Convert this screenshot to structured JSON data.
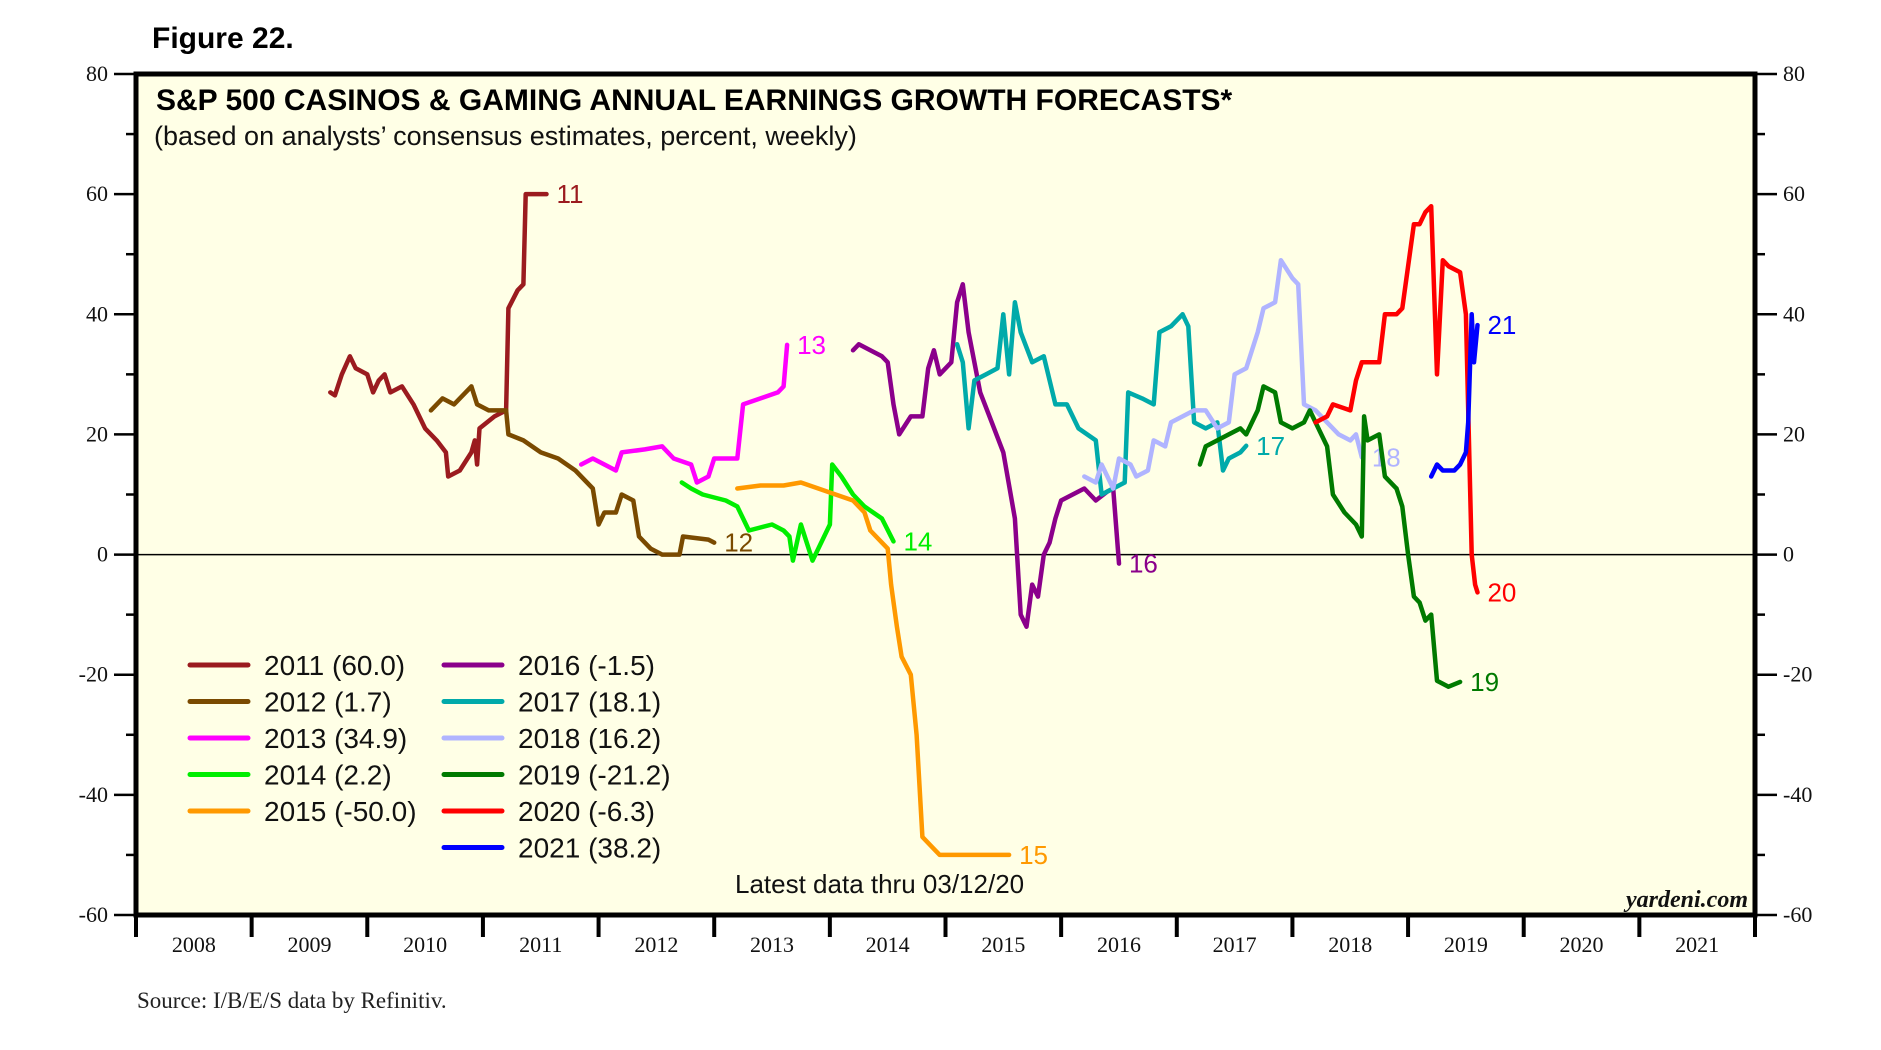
{
  "figure_label": "Figure 22.",
  "source": "Source: I/B/E/S data by Refinitiv.",
  "chart_data": {
    "type": "line",
    "title": "S&P 500 CASINOS & GAMING ANNUAL EARNINGS GROWTH FORECASTS*",
    "subtitle": "(based on analysts’ consensus estimates, percent, weekly)",
    "xlabel": "",
    "ylabel": "",
    "xlim": [
      2008,
      2022
    ],
    "ylim": [
      -60,
      80
    ],
    "y_ticks": [
      80,
      60,
      40,
      20,
      0,
      -20,
      -40,
      -60
    ],
    "y_ticks_right": [
      80,
      60,
      40,
      20,
      0,
      -20,
      -40,
      -60
    ],
    "x_tick_labels": [
      "2008",
      "2009",
      "2010",
      "2011",
      "2012",
      "2013",
      "2014",
      "2015",
      "2016",
      "2017",
      "2018",
      "2019",
      "2020",
      "2021"
    ],
    "grid": false,
    "zero_line": true,
    "legend_placement": "bottom-left",
    "annotation_latest": "Latest data thru 03/12/20",
    "brand": "yardeni.com",
    "series": [
      {
        "name": "2011 (60.0)",
        "end_label": "11",
        "color": "#9b1b1f",
        "points": [
          [
            2009.68,
            27
          ],
          [
            2009.72,
            26.5
          ],
          [
            2009.78,
            30
          ],
          [
            2009.85,
            33
          ],
          [
            2009.9,
            31
          ],
          [
            2010.0,
            30
          ],
          [
            2010.05,
            27
          ],
          [
            2010.1,
            29
          ],
          [
            2010.15,
            30
          ],
          [
            2010.2,
            27
          ],
          [
            2010.3,
            28
          ],
          [
            2010.4,
            25
          ],
          [
            2010.5,
            21
          ],
          [
            2010.6,
            19
          ],
          [
            2010.68,
            17
          ],
          [
            2010.7,
            13
          ],
          [
            2010.8,
            14
          ],
          [
            2010.9,
            17
          ],
          [
            2010.93,
            19
          ],
          [
            2010.95,
            15
          ],
          [
            2010.97,
            21
          ],
          [
            2011.1,
            23
          ],
          [
            2011.2,
            24
          ],
          [
            2011.22,
            41
          ],
          [
            2011.3,
            44
          ],
          [
            2011.35,
            45
          ],
          [
            2011.37,
            60
          ],
          [
            2011.55,
            60
          ]
        ]
      },
      {
        "name": "2012 (1.7)",
        "end_label": "12",
        "color": "#7a4a00",
        "points": [
          [
            2010.55,
            24
          ],
          [
            2010.6,
            25
          ],
          [
            2010.65,
            26
          ],
          [
            2010.75,
            25
          ],
          [
            2010.85,
            27
          ],
          [
            2010.9,
            28
          ],
          [
            2010.95,
            25
          ],
          [
            2011.05,
            24
          ],
          [
            2011.2,
            24
          ],
          [
            2011.22,
            20
          ],
          [
            2011.35,
            19
          ],
          [
            2011.5,
            17
          ],
          [
            2011.65,
            16
          ],
          [
            2011.8,
            14
          ],
          [
            2011.95,
            11
          ],
          [
            2012.0,
            5
          ],
          [
            2012.05,
            7
          ],
          [
            2012.15,
            7
          ],
          [
            2012.2,
            10
          ],
          [
            2012.3,
            9
          ],
          [
            2012.35,
            3
          ],
          [
            2012.45,
            1
          ],
          [
            2012.55,
            0
          ],
          [
            2012.7,
            0
          ],
          [
            2012.73,
            3
          ],
          [
            2012.95,
            2.5
          ],
          [
            2013.0,
            2
          ]
        ]
      },
      {
        "name": "2013 (34.9)",
        "end_label": "13",
        "color": "#ff00ff",
        "points": [
          [
            2011.85,
            15
          ],
          [
            2011.95,
            16
          ],
          [
            2012.05,
            15
          ],
          [
            2012.15,
            14
          ],
          [
            2012.2,
            17
          ],
          [
            2012.4,
            17.5
          ],
          [
            2012.55,
            18
          ],
          [
            2012.65,
            16
          ],
          [
            2012.8,
            15
          ],
          [
            2012.85,
            12
          ],
          [
            2012.95,
            13
          ],
          [
            2013.0,
            16
          ],
          [
            2013.2,
            16
          ],
          [
            2013.25,
            25
          ],
          [
            2013.4,
            26
          ],
          [
            2013.55,
            27
          ],
          [
            2013.6,
            28
          ],
          [
            2013.63,
            34.9
          ]
        ]
      },
      {
        "name": "2014 (2.2)",
        "end_label": "14",
        "color": "#00ee00",
        "points": [
          [
            2012.72,
            12
          ],
          [
            2012.8,
            11
          ],
          [
            2012.9,
            10
          ],
          [
            2013.1,
            9
          ],
          [
            2013.2,
            8
          ],
          [
            2013.3,
            4
          ],
          [
            2013.5,
            5
          ],
          [
            2013.6,
            4
          ],
          [
            2013.65,
            3
          ],
          [
            2013.68,
            -1
          ],
          [
            2013.75,
            5
          ],
          [
            2013.85,
            -1
          ],
          [
            2013.9,
            1
          ],
          [
            2014.0,
            5
          ],
          [
            2014.02,
            15
          ],
          [
            2014.1,
            13
          ],
          [
            2014.2,
            10
          ],
          [
            2014.3,
            8
          ],
          [
            2014.45,
            6
          ],
          [
            2014.55,
            2.2
          ]
        ]
      },
      {
        "name": "2015 (-50.0)",
        "end_label": "15",
        "color": "#ff9900",
        "points": [
          [
            2013.2,
            11
          ],
          [
            2013.4,
            11.5
          ],
          [
            2013.6,
            11.5
          ],
          [
            2013.75,
            12
          ],
          [
            2013.9,
            11
          ],
          [
            2014.05,
            10
          ],
          [
            2014.2,
            9
          ],
          [
            2014.3,
            7
          ],
          [
            2014.35,
            4
          ],
          [
            2014.45,
            2
          ],
          [
            2014.5,
            1
          ],
          [
            2014.53,
            -5
          ],
          [
            2014.58,
            -12
          ],
          [
            2014.62,
            -17
          ],
          [
            2014.7,
            -20
          ],
          [
            2014.75,
            -30
          ],
          [
            2014.8,
            -47
          ],
          [
            2014.9,
            -49
          ],
          [
            2014.95,
            -50
          ],
          [
            2015.55,
            -50
          ]
        ]
      },
      {
        "name": "2016 (-1.5)",
        "end_label": "16",
        "color": "#8b008b",
        "points": [
          [
            2014.2,
            34
          ],
          [
            2014.25,
            35
          ],
          [
            2014.35,
            34
          ],
          [
            2014.45,
            33
          ],
          [
            2014.5,
            32
          ],
          [
            2014.55,
            25
          ],
          [
            2014.6,
            20
          ],
          [
            2014.7,
            23
          ],
          [
            2014.8,
            23
          ],
          [
            2014.85,
            31
          ],
          [
            2014.9,
            34
          ],
          [
            2014.95,
            30
          ],
          [
            2015.05,
            32
          ],
          [
            2015.1,
            42
          ],
          [
            2015.15,
            45
          ],
          [
            2015.2,
            37
          ],
          [
            2015.3,
            27
          ],
          [
            2015.4,
            22
          ],
          [
            2015.5,
            17
          ],
          [
            2015.6,
            6
          ],
          [
            2015.65,
            -10
          ],
          [
            2015.7,
            -12
          ],
          [
            2015.75,
            -5
          ],
          [
            2015.8,
            -7
          ],
          [
            2015.85,
            0
          ],
          [
            2015.9,
            2
          ],
          [
            2015.95,
            6
          ],
          [
            2016.0,
            9
          ],
          [
            2016.1,
            10
          ],
          [
            2016.2,
            11
          ],
          [
            2016.3,
            9
          ],
          [
            2016.4,
            10.5
          ],
          [
            2016.45,
            11
          ],
          [
            2016.5,
            -1.5
          ]
        ]
      },
      {
        "name": "2017 (18.1)",
        "end_label": "17",
        "color": "#00aaaa",
        "points": [
          [
            2015.1,
            35
          ],
          [
            2015.15,
            32
          ],
          [
            2015.2,
            21
          ],
          [
            2015.25,
            29
          ],
          [
            2015.35,
            30
          ],
          [
            2015.45,
            31
          ],
          [
            2015.5,
            40
          ],
          [
            2015.55,
            30
          ],
          [
            2015.6,
            42
          ],
          [
            2015.65,
            37
          ],
          [
            2015.75,
            32
          ],
          [
            2015.85,
            33
          ],
          [
            2015.95,
            25
          ],
          [
            2016.05,
            25
          ],
          [
            2016.15,
            21
          ],
          [
            2016.3,
            19
          ],
          [
            2016.35,
            10
          ],
          [
            2016.45,
            11
          ],
          [
            2016.55,
            12
          ],
          [
            2016.58,
            27
          ],
          [
            2016.7,
            26
          ],
          [
            2016.8,
            25
          ],
          [
            2016.85,
            37
          ],
          [
            2016.95,
            38
          ],
          [
            2017.05,
            40
          ],
          [
            2017.1,
            38
          ],
          [
            2017.15,
            22
          ],
          [
            2017.25,
            21
          ],
          [
            2017.35,
            22
          ],
          [
            2017.4,
            14
          ],
          [
            2017.45,
            16
          ],
          [
            2017.55,
            17
          ],
          [
            2017.6,
            18.1
          ]
        ]
      },
      {
        "name": "2018 (16.2)",
        "end_label": "18",
        "color": "#b0b4ff",
        "points": [
          [
            2016.2,
            13
          ],
          [
            2016.3,
            12
          ],
          [
            2016.35,
            15
          ],
          [
            2016.45,
            11
          ],
          [
            2016.5,
            16
          ],
          [
            2016.6,
            15
          ],
          [
            2016.65,
            13
          ],
          [
            2016.75,
            14
          ],
          [
            2016.8,
            19
          ],
          [
            2016.9,
            18
          ],
          [
            2016.95,
            22
          ],
          [
            2017.05,
            23
          ],
          [
            2017.15,
            24
          ],
          [
            2017.25,
            24
          ],
          [
            2017.35,
            21
          ],
          [
            2017.45,
            22
          ],
          [
            2017.5,
            30
          ],
          [
            2017.6,
            31
          ],
          [
            2017.7,
            37
          ],
          [
            2017.75,
            41
          ],
          [
            2017.85,
            42
          ],
          [
            2017.9,
            49
          ],
          [
            2018.0,
            46
          ],
          [
            2018.05,
            45
          ],
          [
            2018.1,
            25
          ],
          [
            2018.2,
            24
          ],
          [
            2018.3,
            22
          ],
          [
            2018.4,
            20
          ],
          [
            2018.5,
            19
          ],
          [
            2018.55,
            20
          ],
          [
            2018.6,
            16.2
          ]
        ]
      },
      {
        "name": "2019 (-21.2)",
        "end_label": "19",
        "color": "#007a00",
        "points": [
          [
            2017.2,
            15
          ],
          [
            2017.25,
            18
          ],
          [
            2017.35,
            19
          ],
          [
            2017.45,
            20
          ],
          [
            2017.55,
            21
          ],
          [
            2017.6,
            20
          ],
          [
            2017.7,
            24
          ],
          [
            2017.75,
            28
          ],
          [
            2017.85,
            27
          ],
          [
            2017.9,
            22
          ],
          [
            2018.0,
            21
          ],
          [
            2018.1,
            22
          ],
          [
            2018.15,
            24
          ],
          [
            2018.25,
            20
          ],
          [
            2018.3,
            18
          ],
          [
            2018.35,
            10
          ],
          [
            2018.45,
            7
          ],
          [
            2018.55,
            5
          ],
          [
            2018.6,
            3
          ],
          [
            2018.62,
            23
          ],
          [
            2018.65,
            19
          ],
          [
            2018.75,
            20
          ],
          [
            2018.8,
            13
          ],
          [
            2018.9,
            11
          ],
          [
            2018.95,
            8
          ],
          [
            2019.0,
            0
          ],
          [
            2019.05,
            -7
          ],
          [
            2019.1,
            -8
          ],
          [
            2019.15,
            -11
          ],
          [
            2019.2,
            -10
          ],
          [
            2019.25,
            -21
          ],
          [
            2019.35,
            -22
          ],
          [
            2019.45,
            -21.2
          ]
        ]
      },
      {
        "name": "2020 (-6.3)",
        "end_label": "20",
        "color": "#ff0000",
        "points": [
          [
            2018.2,
            22
          ],
          [
            2018.3,
            23
          ],
          [
            2018.35,
            25
          ],
          [
            2018.5,
            24
          ],
          [
            2018.55,
            29
          ],
          [
            2018.6,
            32
          ],
          [
            2018.75,
            32
          ],
          [
            2018.8,
            40
          ],
          [
            2018.9,
            40
          ],
          [
            2018.95,
            41
          ],
          [
            2019.05,
            55
          ],
          [
            2019.1,
            55
          ],
          [
            2019.15,
            57
          ],
          [
            2019.2,
            58
          ],
          [
            2019.25,
            30
          ],
          [
            2019.3,
            49
          ],
          [
            2019.35,
            48
          ],
          [
            2019.45,
            47
          ],
          [
            2019.5,
            40
          ],
          [
            2019.55,
            0
          ],
          [
            2019.58,
            -5
          ],
          [
            2019.6,
            -6.3
          ]
        ]
      },
      {
        "name": "2021 (38.2)",
        "end_label": "21",
        "color": "#0000ff",
        "points": [
          [
            2019.2,
            13
          ],
          [
            2019.25,
            15
          ],
          [
            2019.3,
            14
          ],
          [
            2019.4,
            14
          ],
          [
            2019.45,
            15
          ],
          [
            2019.5,
            17
          ],
          [
            2019.52,
            22
          ],
          [
            2019.55,
            40
          ],
          [
            2019.57,
            32
          ],
          [
            2019.6,
            38.2
          ]
        ]
      }
    ]
  }
}
